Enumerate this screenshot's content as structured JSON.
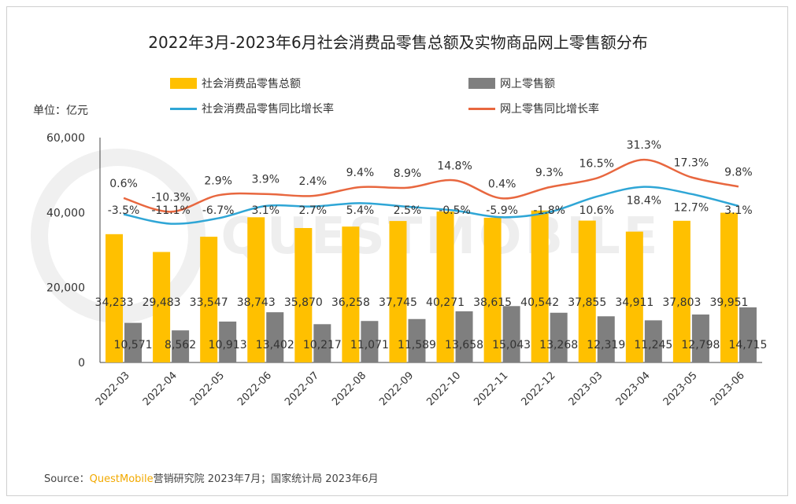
{
  "title": "2022年3月-2023年6月社会消费品零售总额及实物商品网上零售额分布",
  "unit_label": "单位：亿元",
  "legend": {
    "bar1": "社会消费品零售总额",
    "bar2": "网上零售额",
    "line1": "社会消费品零售同比增长率",
    "line2": "网上零售同比增长率"
  },
  "colors": {
    "bar1": "#FFC000",
    "bar2": "#7F7F7F",
    "line1": "#2FA6D6",
    "line2": "#E8673F"
  },
  "source": {
    "prefix": "Source：",
    "brand": "QuestMobile",
    "rest": "营销研究院 2023年7月；国家统计局 2023年6月"
  },
  "watermark": "QUESTMOBILE",
  "chart_data": {
    "type": "bar",
    "categories": [
      "2022-03",
      "2022-04",
      "2022-05",
      "2022-06",
      "2022-07",
      "2022-08",
      "2022-09",
      "2022-10",
      "2022-11",
      "2022-12",
      "2023-03",
      "2023-04",
      "2023-05",
      "2023-06"
    ],
    "series": [
      {
        "name": "社会消费品零售总额",
        "type": "bar",
        "values": [
          34233,
          29483,
          33547,
          38743,
          35870,
          36258,
          37745,
          40271,
          38615,
          40542,
          37855,
          34911,
          37803,
          39951
        ],
        "labels": [
          "34,233",
          "29,483",
          "33,547",
          "38,743",
          "35,870",
          "36,258",
          "37,745",
          "40,271",
          "38,615",
          "40,542",
          "37,855",
          "34,911",
          "37,803",
          "39,951"
        ]
      },
      {
        "name": "网上零售额",
        "type": "bar",
        "values": [
          10571,
          8562,
          10913,
          13402,
          10217,
          11071,
          11589,
          13658,
          15043,
          13268,
          12319,
          11245,
          12798,
          14715
        ],
        "labels": [
          "10,571",
          "8,562",
          "10,913",
          "13,402",
          "10,217",
          "11,071",
          "11,589",
          "13,658",
          "15,043",
          "13,268",
          "12,319",
          "11,245",
          "12,798",
          "14,715"
        ]
      },
      {
        "name": "社会消费品零售同比增长率",
        "type": "line",
        "values": [
          -3.5,
          -11.1,
          -6.7,
          3.1,
          2.7,
          5.4,
          2.5,
          -0.5,
          -5.9,
          -1.8,
          10.6,
          18.4,
          12.7,
          3.1
        ],
        "labels": [
          "-3.5%",
          "-11.1%",
          "-6.7%",
          "3.1%",
          "2.7%",
          "5.4%",
          "2.5%",
          "-0.5%",
          "-5.9%",
          "-1.8%",
          "10.6%",
          "18.4%",
          "12.7%",
          "3.1%"
        ]
      },
      {
        "name": "网上零售同比增长率",
        "type": "line",
        "values": [
          0.6,
          -10.3,
          2.9,
          3.9,
          2.4,
          9.4,
          8.9,
          14.8,
          0.4,
          9.3,
          16.5,
          31.3,
          17.3,
          9.8
        ],
        "labels": [
          "0.6%",
          "-10.3%",
          "2.9%",
          "3.9%",
          "2.4%",
          "9.4%",
          "8.9%",
          "14.8%",
          "0.4%",
          "9.3%",
          "16.5%",
          "31.3%",
          "17.3%",
          "9.8%"
        ]
      }
    ],
    "y_ticks": [
      "0",
      "20,000",
      "40,000",
      "60,000"
    ],
    "ylim": [
      0,
      60000
    ],
    "grid": false,
    "legend_position": "top"
  }
}
